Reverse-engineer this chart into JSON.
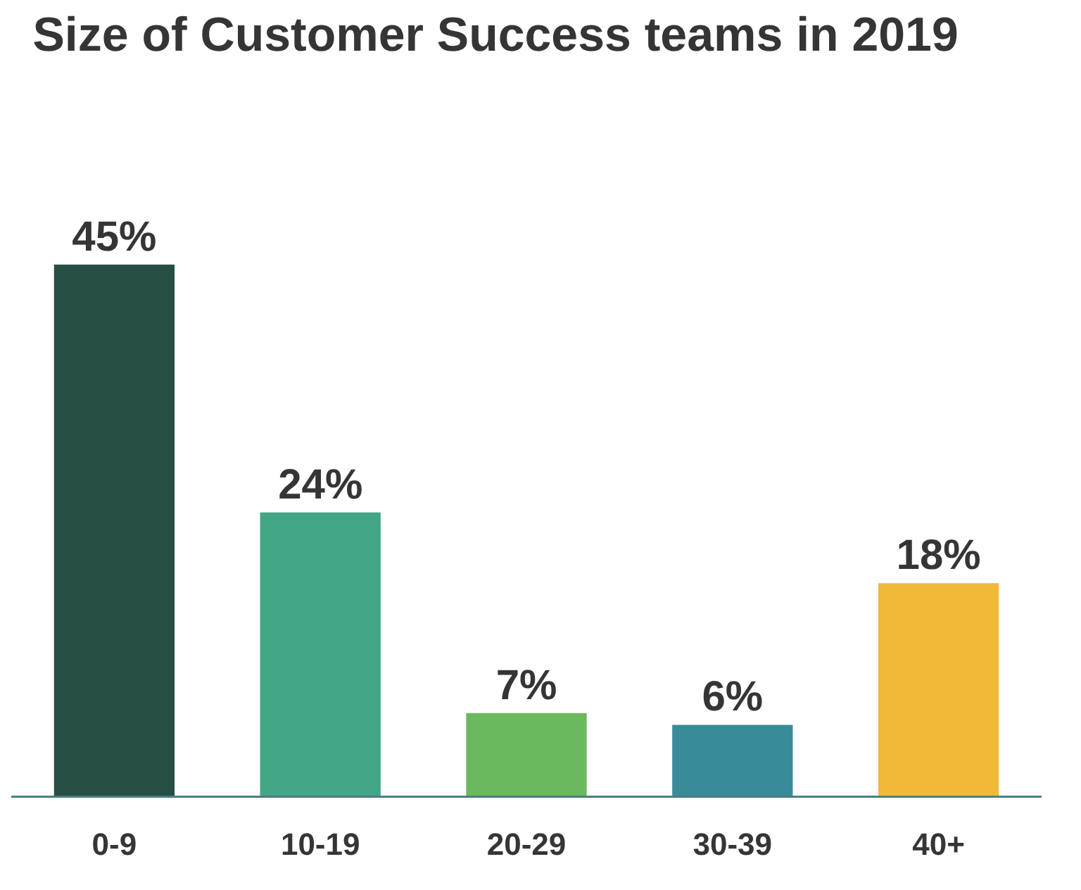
{
  "chart_data": {
    "type": "bar",
    "title": "Size of Customer Success teams in 2019",
    "categories": [
      "0-9",
      "10-19",
      "20-29",
      "30-39",
      "40+"
    ],
    "values": [
      45,
      24,
      7,
      6,
      18
    ],
    "colors": [
      "#264e45",
      "#41a586",
      "#6cb85e",
      "#3a8b9a",
      "#f0b938"
    ],
    "value_labels": [
      "45%",
      "24%",
      "7%",
      "6%",
      "18%"
    ]
  }
}
